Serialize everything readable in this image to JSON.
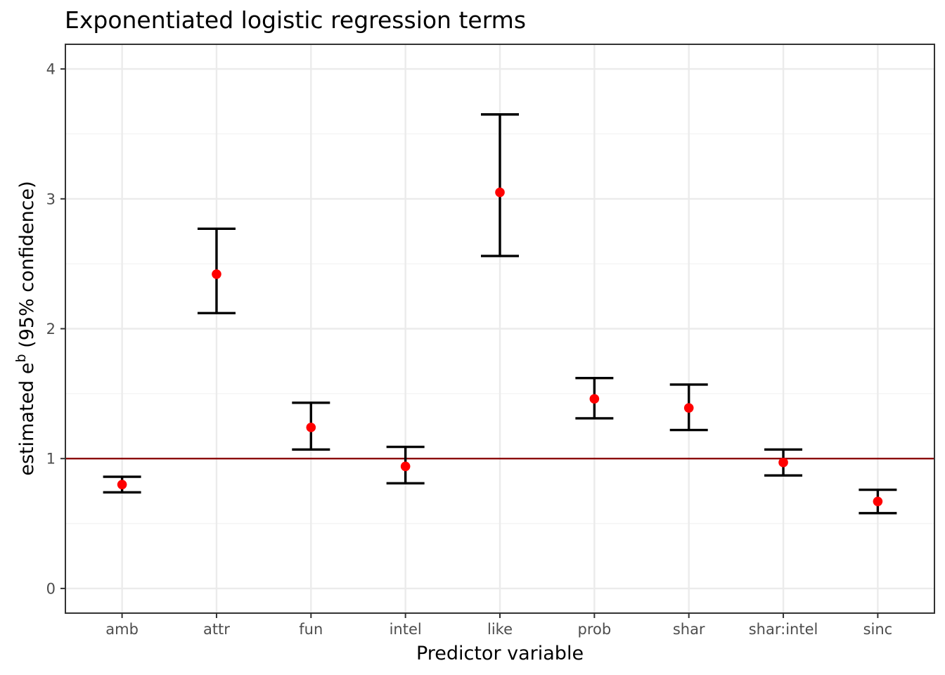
{
  "chart_data": {
    "type": "errorbar",
    "title": "Exponentiated logistic regression terms",
    "xlabel": "Predictor variable",
    "ylabel_prefix": "estimated e",
    "ylabel_superscript": "b",
    "ylabel_suffix": " (95% confidence)",
    "categories": [
      "amb",
      "attr",
      "fun",
      "intel",
      "like",
      "prob",
      "shar",
      "shar:intel",
      "sinc"
    ],
    "estimate": [
      0.8,
      2.42,
      1.24,
      0.94,
      3.05,
      1.46,
      1.39,
      0.97,
      0.67
    ],
    "lower": [
      0.74,
      2.12,
      1.07,
      0.81,
      2.56,
      1.31,
      1.22,
      0.87,
      0.58
    ],
    "upper": [
      0.86,
      2.77,
      1.43,
      1.09,
      3.65,
      1.62,
      1.57,
      1.07,
      0.76
    ],
    "ylim": [
      -0.19,
      4.19
    ],
    "y_ticks": [
      0,
      1,
      2,
      3,
      4
    ],
    "y_minor_ticks": [
      0.5,
      1.5,
      2.5,
      3.5
    ],
    "reference_line": 1,
    "grid": true,
    "theme": "bw",
    "colors": {
      "point": "#ff0000",
      "errorbar": "#000000",
      "reference_line": "#8b0000",
      "grid_major": "#ebebeb",
      "grid_minor": "#f4f4f4",
      "panel_border": "#333333"
    }
  }
}
